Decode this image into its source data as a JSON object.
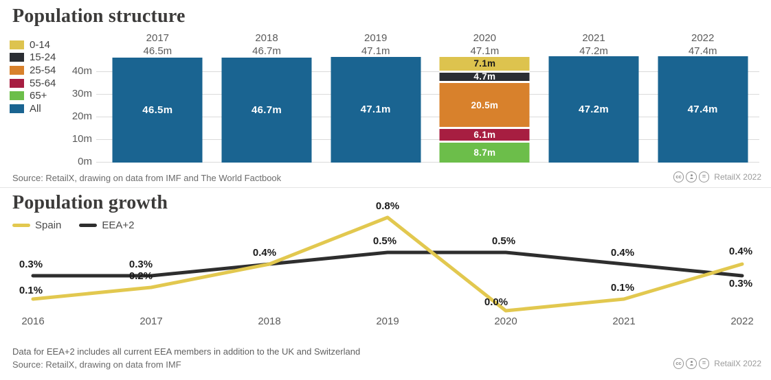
{
  "ui": {
    "chart1": {
      "title": "Population structure",
      "legend": [
        {
          "label": "0-14",
          "color": "#ddc34e"
        },
        {
          "label": "15-24",
          "color": "#2b2e33"
        },
        {
          "label": "25-54",
          "color": "#d8812c"
        },
        {
          "label": "55-64",
          "color": "#a71e41"
        },
        {
          "label": "65+",
          "color": "#6cbe4a"
        },
        {
          "label": "All",
          "color": "#1a6491"
        }
      ],
      "source": "Source: RetailX, drawing on data from IMF and The World Factbook",
      "badge": "RetailX 2022"
    },
    "chart2": {
      "title": "Population growth",
      "legend": [
        {
          "label": "Spain",
          "color": "#e2c84f"
        },
        {
          "label": "EEA+2",
          "color": "#2e2e2e"
        }
      ],
      "note": "Data for EEA+2 includes all current EEA members in addition to the UK and Switzerland",
      "source": "Source: RetailX, drawing on data from IMF",
      "badge": "RetailX 2022"
    }
  },
  "chart_data": [
    {
      "type": "bar",
      "title": "Population structure",
      "categories": [
        "2017",
        "2018",
        "2019",
        "2020",
        "2021",
        "2022"
      ],
      "totals": [
        46.5,
        46.7,
        47.1,
        47.1,
        47.2,
        47.4
      ],
      "total_labels": [
        "46.5m",
        "46.7m",
        "47.1m",
        "47.1m",
        "47.2m",
        "47.4m"
      ],
      "unit": "millions of people",
      "ylim": [
        0,
        47.4
      ],
      "yticks": [
        0,
        10,
        20,
        30,
        40
      ],
      "ytick_labels": [
        "0m",
        "10m",
        "20m",
        "30m",
        "40m"
      ],
      "bar_color": "#1a6491",
      "grid": true,
      "stacked_year": "2020",
      "stacked_segments": [
        {
          "group": "0-14",
          "value": 7.1,
          "label": "7.1m",
          "color": "#ddc34e",
          "label_color": "#1a1a1a"
        },
        {
          "group": "15-24",
          "value": 4.7,
          "label": "4.7m",
          "color": "#2b2e33",
          "label_color": "#ffffff"
        },
        {
          "group": "25-54",
          "value": 20.5,
          "label": "20.5m",
          "color": "#d8812c",
          "label_color": "#ffffff"
        },
        {
          "group": "55-64",
          "value": 6.1,
          "label": "6.1m",
          "color": "#a71e41",
          "label_color": "#ffffff"
        },
        {
          "group": "65+",
          "value": 8.7,
          "label": "8.7m",
          "color": "#6cbe4a",
          "label_color": "#ffffff"
        }
      ]
    },
    {
      "type": "line",
      "title": "Population growth",
      "x": [
        "2016",
        "2017",
        "2018",
        "2019",
        "2020",
        "2021",
        "2022"
      ],
      "series": [
        {
          "name": "Spain",
          "color": "#e2c84f",
          "values": [
            0.1,
            0.2,
            0.4,
            0.8,
            0.0,
            0.1,
            0.4
          ],
          "labels": [
            "0.1%",
            "0.2%",
            "0.4%",
            "0.8%",
            "0.0%",
            "0.1%",
            "0.4%"
          ]
        },
        {
          "name": "EEA+2",
          "color": "#2e2e2e",
          "values": [
            0.3,
            0.3,
            0.4,
            0.5,
            0.5,
            0.4,
            0.3
          ],
          "labels": [
            "0.3%",
            "0.3%",
            "",
            "0.5%",
            "0.5%",
            "0.4%",
            "0.3%"
          ]
        }
      ],
      "ylim": [
        0,
        0.9
      ],
      "unit": "percent",
      "grid": false,
      "legend_position": "top-left"
    }
  ]
}
